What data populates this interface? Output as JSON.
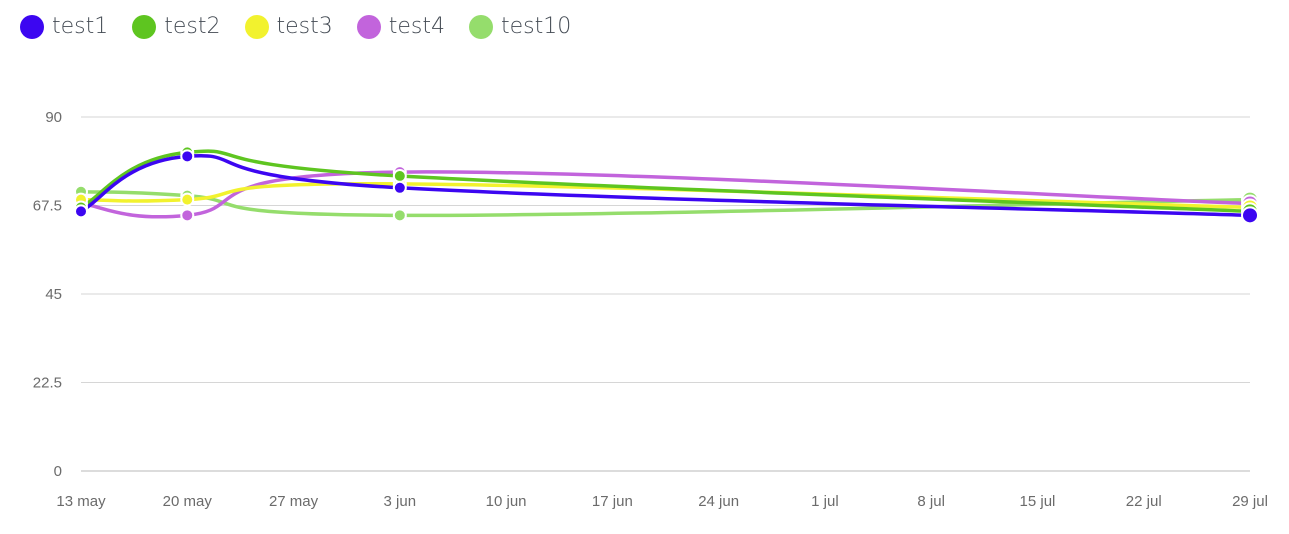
{
  "chart_data": {
    "type": "line",
    "legend_position": "top-left",
    "grid": true,
    "x_ticks": [
      "13 may",
      "20 may",
      "27 may",
      "3 jun",
      "10 jun",
      "17 jun",
      "24 jun",
      "1 jul",
      "8 jul",
      "15 jul",
      "22 jul",
      "29 jul"
    ],
    "y_ticks": [
      "0",
      "22.5",
      "45",
      "67.5",
      "90"
    ],
    "ylim": [
      0,
      90
    ],
    "x": [
      "13 may",
      "20 may",
      "3 jun",
      "29 jul"
    ],
    "series": [
      {
        "name": "test1",
        "color": "#3c06f1",
        "values": [
          66,
          80,
          72,
          65
        ]
      },
      {
        "name": "test2",
        "color": "#5ec520",
        "values": [
          67,
          81,
          75,
          66
        ]
      },
      {
        "name": "test3",
        "color": "#f2f22e",
        "values": [
          69,
          69,
          73,
          67
        ]
      },
      {
        "name": "test4",
        "color": "#c264dc",
        "values": [
          68,
          65,
          76,
          68
        ]
      },
      {
        "name": "test10",
        "color": "#95dd6c",
        "values": [
          71,
          70,
          65,
          69
        ]
      }
    ]
  }
}
